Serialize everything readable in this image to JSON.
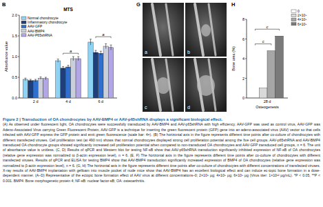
{
  "chart_data": [
    {
      "type": "bar",
      "title": "MTS",
      "y_label": "Absorbance value",
      "categories": [
        "2 d",
        "4 d",
        "6 d"
      ],
      "series": [
        {
          "name": "Normal chondrocyte",
          "color": "#8fd3f4",
          "values": [
            0.45,
            0.9,
            1.35
          ],
          "errors": [
            0.03,
            0.04,
            0.07
          ]
        },
        {
          "name": "Inflammatory chondrocyte",
          "color": "#1f3f7a",
          "values": [
            0.42,
            0.72,
            1.1
          ],
          "errors": [
            0.03,
            0.04,
            0.05
          ]
        },
        {
          "name": "AAV-GFP",
          "color": "#2f6fd0",
          "values": [
            0.42,
            0.75,
            1.08
          ],
          "errors": [
            0.03,
            0.04,
            0.05
          ]
        },
        {
          "name": "AAV-BMP4",
          "color": "#c9cfdb",
          "values": [
            0.48,
            0.95,
            1.25
          ],
          "errors": [
            0.03,
            0.05,
            0.06
          ]
        },
        {
          "name": "AAV-P65shRNA",
          "color": "#b3a6e6",
          "values": [
            0.47,
            0.95,
            1.22
          ],
          "errors": [
            0.03,
            0.05,
            0.06
          ]
        }
      ],
      "ylim": [
        0,
        2
      ],
      "yticks": [
        {
          "value": 0,
          "label": "0.0"
        },
        {
          "value": 0.5,
          "label": "0.5"
        },
        {
          "value": 1,
          "label": "1.0"
        },
        {
          "value": 1.5,
          "label": "1.5"
        },
        {
          "value": 2,
          "label": "2.0"
        }
      ],
      "legend": "upper left",
      "annotations": [
        {
          "text": "a",
          "category": 1,
          "y": 1.08,
          "series": [
            1,
            4
          ]
        },
        {
          "text": "a",
          "category": 2,
          "y": 1.48,
          "series": [
            1,
            4
          ]
        }
      ]
    },
    {
      "type": "bar",
      "y_label": "Bone area (%)",
      "x_label": "Osteogenesis",
      "categories": [
        "28 d"
      ],
      "series": [
        {
          "name": "0",
          "color": "#ffffff",
          "values": [
            0
          ]
        },
        {
          "name": "2×10⁹",
          "color": "#d9d9d9",
          "values": [
            1.0
          ]
        },
        {
          "name": "4×10⁹",
          "color": "#a6a6a6",
          "values": [
            4.8
          ]
        },
        {
          "name": "6×10⁹",
          "color": "#7a7a7a",
          "values": [
            6.3
          ]
        }
      ],
      "ylim": [
        0,
        8
      ],
      "yticks": [
        0,
        2,
        4,
        6,
        8
      ],
      "legend": "upper right",
      "annotations": [
        {
          "text": "c",
          "category": 0,
          "y": 5.5,
          "series": [
            0,
            2
          ]
        },
        {
          "text": "c",
          "category": 0,
          "y": 7.0,
          "series": [
            0,
            3
          ]
        }
      ]
    }
  ],
  "figure": {
    "panel_labels": [
      "B",
      "G",
      "H"
    ],
    "image_labels": [
      "a",
      "b",
      "c",
      "d"
    ],
    "caption": {
      "title": "Figure 2 | Transduction of OA chondrocytes by AAV-BMP4 or AAV-p65shRNA displays a significant biological effect.",
      "text": "(A) As observed under fluorescent light, OA chondrocytes were successfully transduced by AAV-BMP4 and AAV-p65shRNA with high efficiency. AAV-GFP was used as control virus, AAV-GFP was Adeno-Associated Virus carrying Green Fluorescent Protein, AAV-GFP is a technique for inserting the green fluorescent protein (GFP) gene into an adeno-associated virus (AAV) vector so that cells infected with AAV-GFP express the GFP protein and emit green fluorescence (scale bar: 4×). (B) The horizontal axis in the figure represents different time points after co-culture of chondrocytes with different transfected viruses. Cell proliferation test (at 490 nm) shows that normal chondrocytes displayed strong cell proliferation potential among the five cell groups. AAV-p65shRNA and AAV-BMP4 transduced OA chondrocyte groups showed significantly increased cell proliferation potential when compared to non-transduced OA chondrocytes and AAV-GFP transduced cell groups, n = 6. The unit of absorbance value is unitless. (C, D) Results of qPCR and Western blot for testing NF-κB show that AAV-p65shRNA transduction significantly inhibited expression of NF-κB of OA chondrocytes (relative gene expression was normalized to β-actin expression level), n = 6. (E, F) The horizontal axis in the figure represents different time points after co-culture of chondrocytes with different transfected viruses. Results of qPCR and ELISA for testing BMP4 show that AAV-BMP4 transduction significantly increased expression of BMP4 of OA chondrocytes (relative gene expression was normalized to β-actin expression level), n = 6. (G, H) The horizontal axis in the figure represents different time points after co-culture of chondrocytes with different concentrations of transfected viruses. X-ray results of AAV-BMP4 implantation with gelfoam into muscle pocket of nude mice show that AAV-BMP4 has an excellent biological effect and can induce ec-topic bone formation in a dose-dependent manner. (A–D) Representative of the ectopic bone formation effect of AAV virus at different concentrations–0; 2×10⁹ μg; 4×10⁹ μg; 6×10⁹ μg (Virus titer: 1×10¹² μg/mL). *P < 0.05, **P < 0.001. BMP4: Bone morphogenetic protein 4; NF-κB: nuclear factor-κB; OA: osteoarthritis."
    }
  }
}
